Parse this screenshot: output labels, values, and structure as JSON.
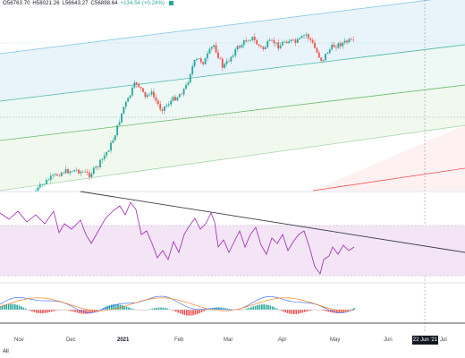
{
  "legend": {
    "open": "O56763.70",
    "high": "H58021.26",
    "low": "L56643.27",
    "close": "C56898.64",
    "change": "+134.54 (+0.24%)",
    "accent": "#26a69a"
  },
  "xaxis": {
    "labels": [
      "Nov",
      "Dec",
      "2021",
      "Feb",
      "Mar",
      "Apr",
      "May",
      "Jun",
      "Jul"
    ],
    "highlight": "2021",
    "cursor_date": "22 Jun '21"
  },
  "footer": {
    "range_button": "All"
  },
  "colors": {
    "up": "#26a69a",
    "down": "#ef5350",
    "rsi_line": "#9c27b0",
    "rsi_band": "#f3e5f5",
    "trendline": "#3a3a4a"
  }
}
